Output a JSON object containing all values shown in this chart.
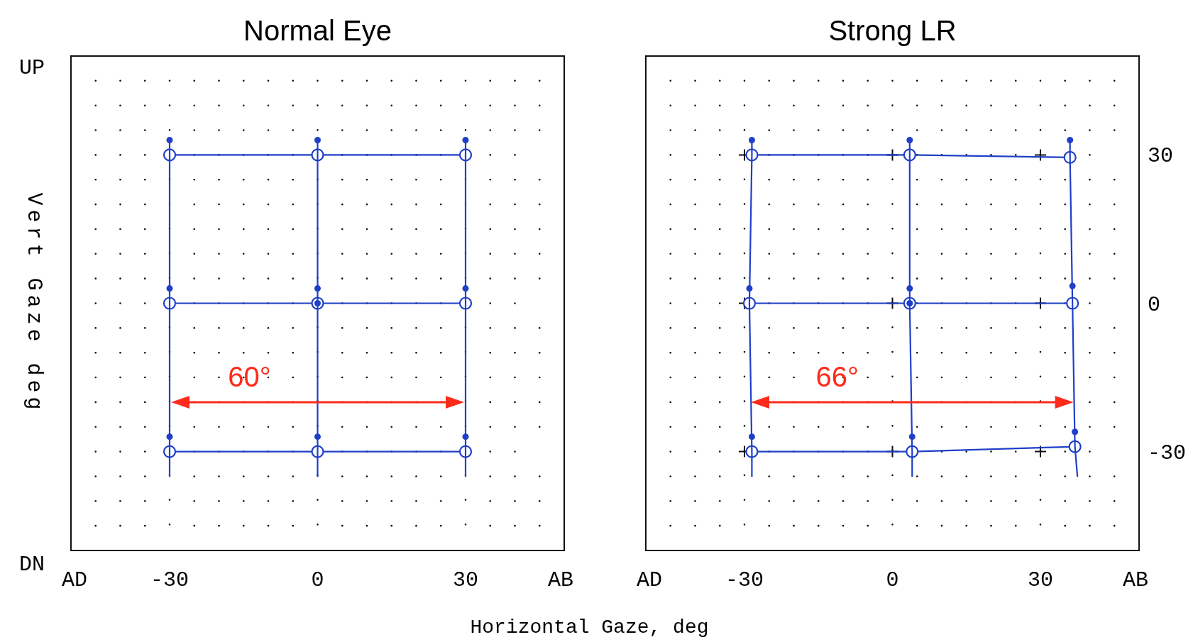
{
  "chart_data": [
    {
      "type": "line",
      "title": "Normal Eye",
      "xlabel": "Horizontal Gaze, deg",
      "ylabel": "Vert Gaze deg",
      "xlim": [
        -50,
        50
      ],
      "ylim": [
        -50,
        50
      ],
      "yticks": [
        30,
        0,
        -30
      ],
      "tick_labels": "x",
      "grid": true,
      "annotations": [
        "UP",
        "DN",
        "AD",
        "AB",
        "60°"
      ],
      "xticks": [
        -30,
        0,
        30
      ],
      "series": [
        {
          "type": "line",
          "marker": "circle",
          "color": "#1f3fc8",
          "x": [
            -30,
            0,
            30
          ],
          "values": [
            30,
            30,
            30
          ]
        },
        {
          "type": "line",
          "marker": "circle",
          "color": "#1f3fc8",
          "x": [
            -30,
            0,
            30
          ],
          "values": [
            0,
            0,
            0
          ]
        },
        {
          "type": "line",
          "marker": "circle",
          "color": "#1f3fc8",
          "x": [
            -30,
            0,
            30
          ],
          "values": [
            -30,
            -30,
            -30
          ]
        },
        {
          "type": "line",
          "marker": "none",
          "color": "#1f3fc8",
          "x": [
            -30,
            -30
          ],
          "values": [
            33,
            -35
          ]
        },
        {
          "type": "line",
          "marker": "none",
          "color": "#1f3fc8",
          "x": [
            0,
            0
          ],
          "values": [
            33,
            -35
          ]
        },
        {
          "type": "line",
          "marker": "none",
          "color": "#1f3fc8",
          "x": [
            30,
            30
          ],
          "values": [
            33,
            -35
          ]
        },
        {
          "type": "scatter",
          "marker": "circle",
          "color": "#1f3fc8",
          "x": [
            -30,
            0,
            30,
            -30,
            0,
            30,
            -30,
            0,
            30
          ],
          "values": [
            33,
            33,
            33,
            3,
            3,
            3,
            -27,
            -27,
            -27
          ]
        },
        {
          "type": "scatter",
          "marker": "circle",
          "color": "#1f3fc8",
          "x": [
            0
          ],
          "values": [
            0
          ]
        }
      ]
    },
    {
      "type": "line",
      "title": "Strong LR",
      "xlim": [
        -50,
        50
      ],
      "y2lim": [
        -50,
        50
      ],
      "grid": true,
      "annotations": [
        "AD",
        "AB",
        "66°"
      ],
      "xticks": [
        -30,
        0,
        30
      ],
      "y2ticks": [
        30,
        0,
        -30
      ],
      "series": [
        {
          "type": "scatter",
          "axis": "y2",
          "marker": "cross",
          "color": "#111111",
          "x": [
            -30,
            0,
            30,
            -30,
            0,
            30,
            -30,
            0,
            30
          ],
          "values": [
            30,
            30,
            30,
            0,
            0,
            0,
            -30,
            -30,
            -30
          ]
        },
        {
          "type": "line",
          "axis": "y2",
          "marker": "circle",
          "color": "#1f3fc8",
          "x": [
            -28.5,
            3.5,
            36
          ],
          "values": [
            30,
            30,
            29.5
          ]
        },
        {
          "type": "line",
          "axis": "y2",
          "marker": "circle",
          "color": "#1f3fc8",
          "x": [
            -29,
            3.5,
            36.5
          ],
          "values": [
            0,
            0,
            0
          ]
        },
        {
          "type": "line",
          "axis": "y2",
          "marker": "circle",
          "color": "#1f3fc8",
          "x": [
            -28.5,
            4,
            37
          ],
          "values": [
            -30,
            -30,
            -29
          ]
        },
        {
          "type": "line",
          "axis": "y2",
          "marker": "none",
          "color": "#1f3fc8",
          "x": [
            -28.5,
            -28.5,
            -29,
            -28.5,
            -28.5
          ],
          "values": [
            33,
            30,
            0,
            -30,
            -35
          ]
        },
        {
          "type": "line",
          "axis": "y2",
          "marker": "none",
          "color": "#1f3fc8",
          "x": [
            3.5,
            3.5,
            3.5,
            4,
            4
          ],
          "values": [
            33,
            30,
            0,
            -30,
            -35
          ]
        },
        {
          "type": "line",
          "axis": "y2",
          "marker": "none",
          "color": "#1f3fc8",
          "x": [
            36,
            36,
            36.5,
            37,
            37.5
          ],
          "values": [
            33,
            29.5,
            0,
            -29,
            -35
          ]
        },
        {
          "type": "scatter",
          "axis": "y2",
          "marker": "circle",
          "color": "#1f3fc8",
          "x": [
            -28.5,
            3.5,
            36,
            -29,
            3.5,
            36.5,
            -28.5,
            4,
            37
          ],
          "values": [
            33,
            33,
            33,
            3,
            3,
            3.5,
            -27,
            -27,
            -26
          ]
        },
        {
          "type": "scatter",
          "axis": "y2",
          "marker": "circle",
          "color": "#1f3fc8",
          "x": [
            3.5
          ],
          "values": [
            0
          ]
        }
      ]
    }
  ]
}
